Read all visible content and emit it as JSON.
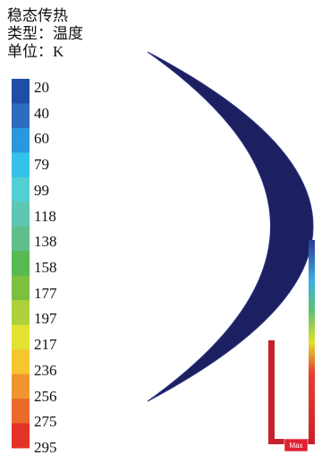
{
  "header": {
    "title": "稳态传热",
    "type": "类型：温度",
    "unit": "单位：K"
  },
  "legend": {
    "labels": [
      "20",
      "40",
      "60",
      "79",
      "99",
      "118",
      "138",
      "158",
      "177",
      "197",
      "217",
      "236",
      "256",
      "275",
      "295"
    ],
    "colors": [
      "#1f4ea6",
      "#2d6cbf",
      "#2a98dc",
      "#35c2ea",
      "#52cfd2",
      "#5ec6b2",
      "#5fbf8c",
      "#58b852",
      "#7cc040",
      "#aed13a",
      "#e2e232",
      "#f4c630",
      "#f0962e",
      "#ea6a2c",
      "#e43228"
    ]
  },
  "model": {
    "max_label": "Max"
  }
}
